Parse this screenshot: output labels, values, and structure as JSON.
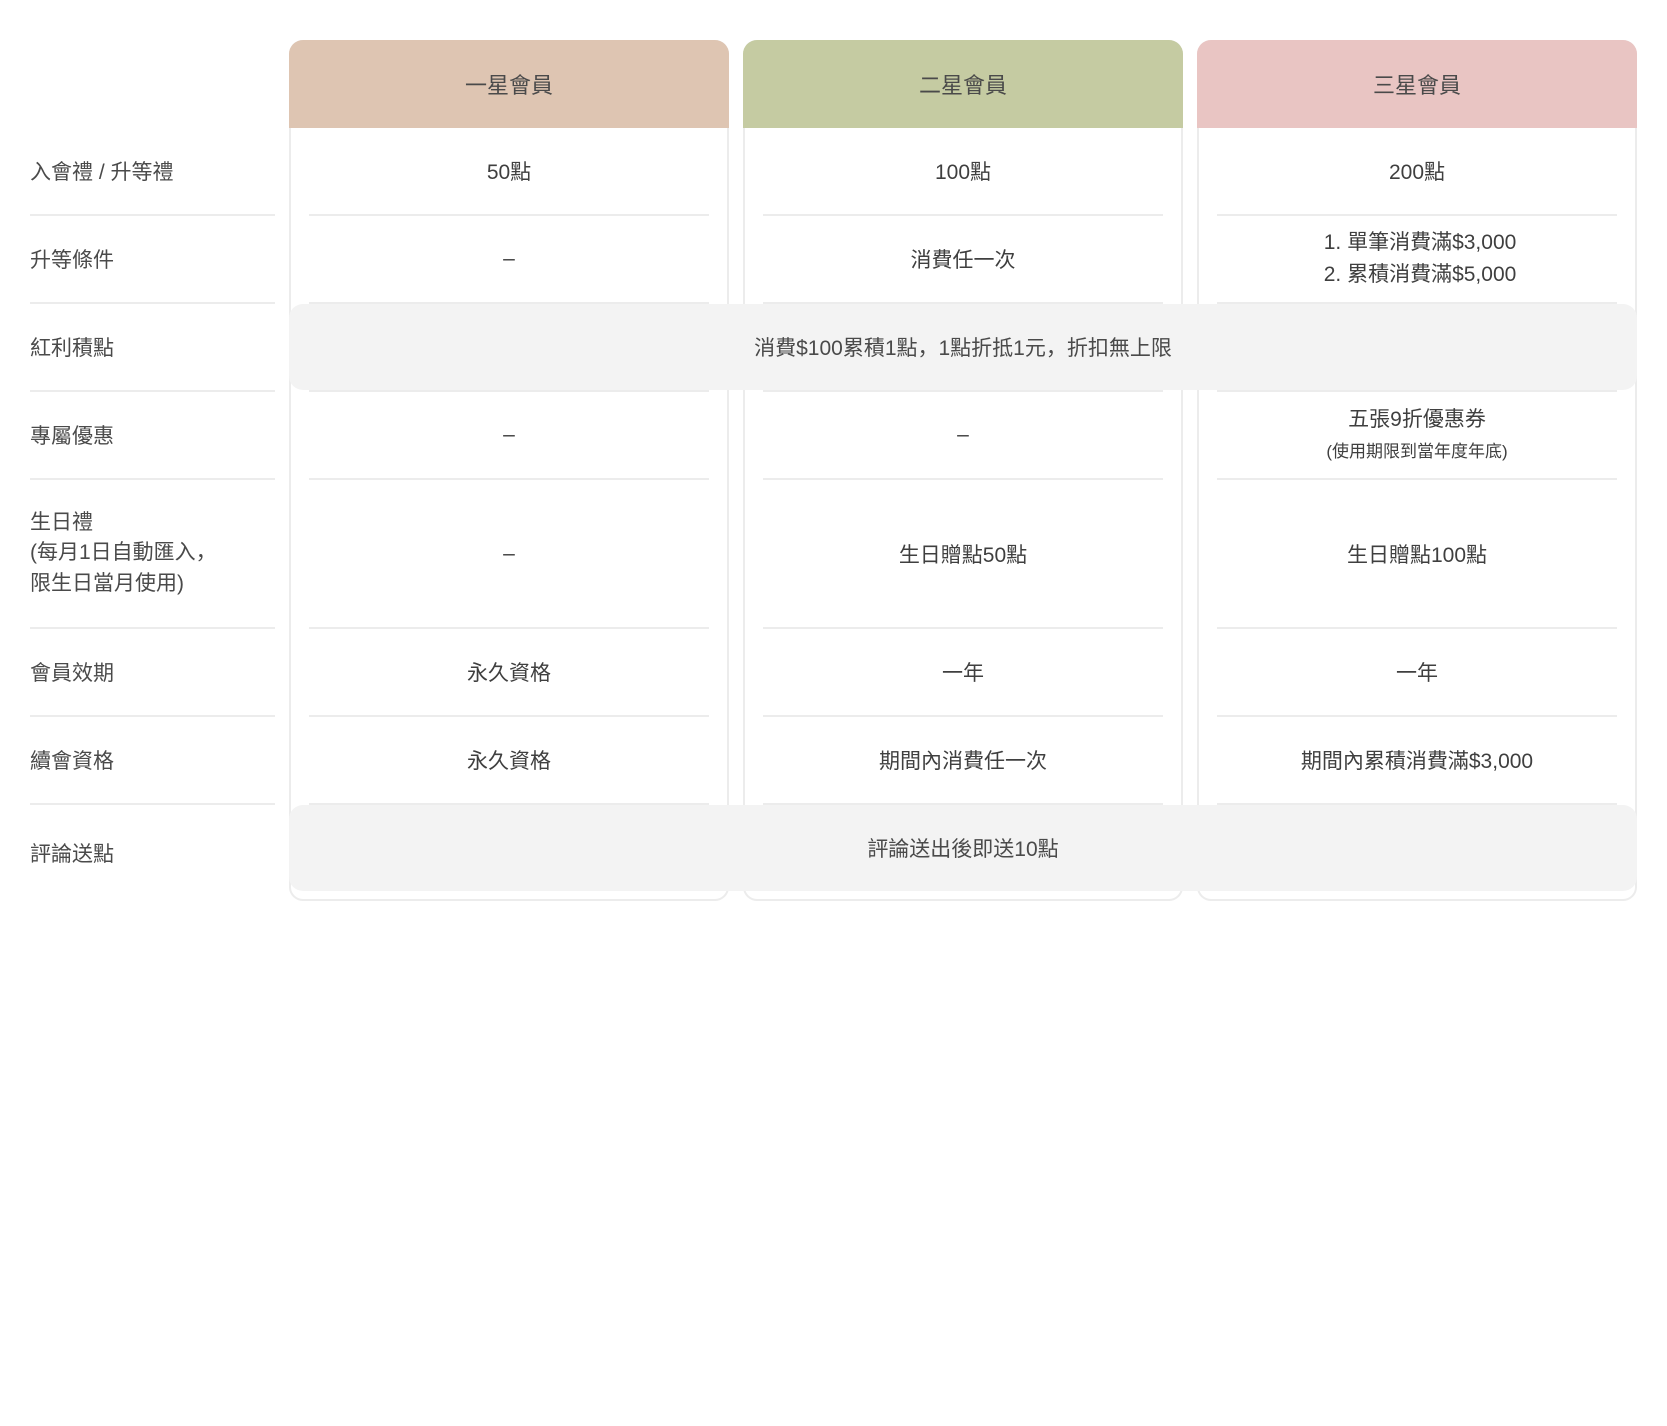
{
  "tiers": {
    "t1": {
      "name": "一星會員",
      "header_bg": "#dec5b2"
    },
    "t2": {
      "name": "二星會員",
      "header_bg": "#c5cba2"
    },
    "t3": {
      "name": "三星會員",
      "header_bg": "#e9c5c3"
    }
  },
  "rows": {
    "join_bonus": {
      "label": "入會禮 / 升等禮",
      "t1": "50點",
      "t2": "100點",
      "t3": "200點"
    },
    "upgrade_condition": {
      "label": "升等條件",
      "t1": "–",
      "t2": "消費任一次",
      "t3_items": [
        "單筆消費滿$3,000",
        "累積消費滿$5,000"
      ]
    },
    "points": {
      "label": "紅利積點",
      "span_text": "消費$100累積1點，1點折抵1元，折扣無上限"
    },
    "exclusive": {
      "label": "專屬優惠",
      "t1": "–",
      "t2": "–",
      "t3_main": "五張9折優惠券",
      "t3_note": "(使用期限到當年度年底)"
    },
    "birthday": {
      "label_line1": "生日禮",
      "label_line2": "(每月1日自動匯入，",
      "label_line3": "限生日當月使用)",
      "t1": "–",
      "t2": "生日贈點50點",
      "t3": "生日贈點100點"
    },
    "validity": {
      "label": "會員效期",
      "t1": "永久資格",
      "t2": "一年",
      "t3": "一年"
    },
    "renewal": {
      "label": "續會資格",
      "t1": "永久資格",
      "t2": "期間內消費任一次",
      "t3": "期間內累積消費滿$3,000"
    },
    "review": {
      "label": "評論送點",
      "span_text": "評論送出後即送10點"
    }
  },
  "style": {
    "row_label_color": "#4a4a4a",
    "value_color": "#3f3f3f",
    "divider_color": "#ececec",
    "span_bg": "#f3f3f3",
    "page_bg": "#ffffff"
  }
}
